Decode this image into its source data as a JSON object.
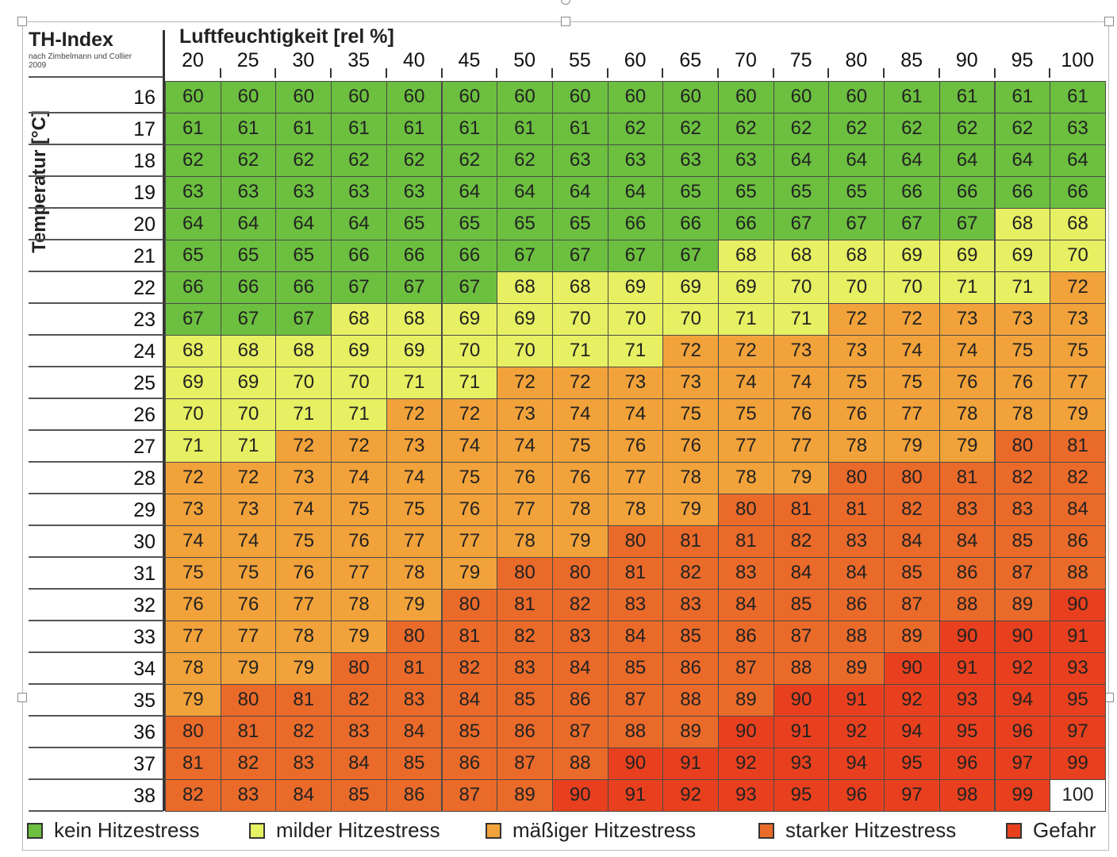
{
  "chart_data": {
    "type": "heatmap",
    "title": "TH-Index",
    "subtitle": "nach Zimbelmann und Collier 2009",
    "xlabel": "Luftfeuchtigkeit [rel %]",
    "ylabel": "Temperatur [°C]",
    "x": [
      20,
      25,
      30,
      35,
      40,
      45,
      50,
      55,
      60,
      65,
      70,
      75,
      80,
      85,
      90,
      95,
      100
    ],
    "y": [
      16,
      17,
      18,
      19,
      20,
      21,
      22,
      23,
      24,
      25,
      26,
      27,
      28,
      29,
      30,
      31,
      32,
      33,
      34,
      35,
      36,
      37,
      38
    ],
    "values": [
      [
        60,
        60,
        60,
        60,
        60,
        60,
        60,
        60,
        60,
        60,
        60,
        60,
        60,
        61,
        61,
        61,
        61
      ],
      [
        61,
        61,
        61,
        61,
        61,
        61,
        61,
        61,
        62,
        62,
        62,
        62,
        62,
        62,
        62,
        62,
        63
      ],
      [
        62,
        62,
        62,
        62,
        62,
        62,
        62,
        63,
        63,
        63,
        63,
        64,
        64,
        64,
        64,
        64,
        64
      ],
      [
        63,
        63,
        63,
        63,
        63,
        64,
        64,
        64,
        64,
        65,
        65,
        65,
        65,
        66,
        66,
        66,
        66
      ],
      [
        64,
        64,
        64,
        64,
        65,
        65,
        65,
        65,
        66,
        66,
        66,
        67,
        67,
        67,
        67,
        68,
        68
      ],
      [
        65,
        65,
        65,
        66,
        66,
        66,
        67,
        67,
        67,
        67,
        68,
        68,
        68,
        69,
        69,
        69,
        70
      ],
      [
        66,
        66,
        66,
        67,
        67,
        67,
        68,
        68,
        69,
        69,
        69,
        70,
        70,
        70,
        71,
        71,
        72
      ],
      [
        67,
        67,
        67,
        68,
        68,
        69,
        69,
        70,
        70,
        70,
        71,
        71,
        72,
        72,
        73,
        73,
        73
      ],
      [
        68,
        68,
        68,
        69,
        69,
        70,
        70,
        71,
        71,
        72,
        72,
        73,
        73,
        74,
        74,
        75,
        75
      ],
      [
        69,
        69,
        70,
        70,
        71,
        71,
        72,
        72,
        73,
        73,
        74,
        74,
        75,
        75,
        76,
        76,
        77
      ],
      [
        70,
        70,
        71,
        71,
        72,
        72,
        73,
        74,
        74,
        75,
        75,
        76,
        76,
        77,
        78,
        78,
        79
      ],
      [
        71,
        71,
        72,
        72,
        73,
        74,
        74,
        75,
        76,
        76,
        77,
        77,
        78,
        79,
        79,
        80,
        81
      ],
      [
        72,
        72,
        73,
        74,
        74,
        75,
        76,
        76,
        77,
        78,
        78,
        79,
        80,
        80,
        81,
        82,
        82
      ],
      [
        73,
        73,
        74,
        75,
        75,
        76,
        77,
        78,
        78,
        79,
        80,
        81,
        81,
        82,
        83,
        83,
        84
      ],
      [
        74,
        74,
        75,
        76,
        77,
        77,
        78,
        79,
        80,
        81,
        81,
        82,
        83,
        84,
        84,
        85,
        86
      ],
      [
        75,
        75,
        76,
        77,
        78,
        79,
        80,
        80,
        81,
        82,
        83,
        84,
        84,
        85,
        86,
        87,
        88
      ],
      [
        76,
        76,
        77,
        78,
        79,
        80,
        81,
        82,
        83,
        83,
        84,
        85,
        86,
        87,
        88,
        89,
        90
      ],
      [
        77,
        77,
        78,
        79,
        80,
        81,
        82,
        83,
        84,
        85,
        86,
        87,
        88,
        89,
        90,
        90,
        91
      ],
      [
        78,
        79,
        79,
        80,
        81,
        82,
        83,
        84,
        85,
        86,
        87,
        88,
        89,
        90,
        91,
        92,
        93
      ],
      [
        79,
        80,
        81,
        82,
        83,
        84,
        85,
        86,
        87,
        88,
        89,
        90,
        91,
        92,
        93,
        94,
        95
      ],
      [
        80,
        81,
        82,
        83,
        84,
        85,
        86,
        87,
        88,
        89,
        90,
        91,
        92,
        94,
        95,
        96,
        97
      ],
      [
        81,
        82,
        83,
        84,
        85,
        86,
        87,
        88,
        90,
        91,
        92,
        93,
        94,
        95,
        96,
        97,
        99
      ],
      [
        82,
        83,
        84,
        85,
        86,
        87,
        89,
        90,
        91,
        92,
        93,
        95,
        96,
        97,
        98,
        99,
        100
      ]
    ],
    "categories_scale": [
      {
        "label": "kein Hitzestress",
        "color": "#6cbf3f"
      },
      {
        "label": "milder Hitzestress",
        "color": "#e6f062"
      },
      {
        "label": "mäßiger Hitzestress",
        "color": "#f2a23a"
      },
      {
        "label": "starker Hitzestress",
        "color": "#ea6a2a"
      },
      {
        "label": "Gefahr",
        "color": "#e8401e"
      }
    ],
    "overflow_color": "#ffffff"
  }
}
